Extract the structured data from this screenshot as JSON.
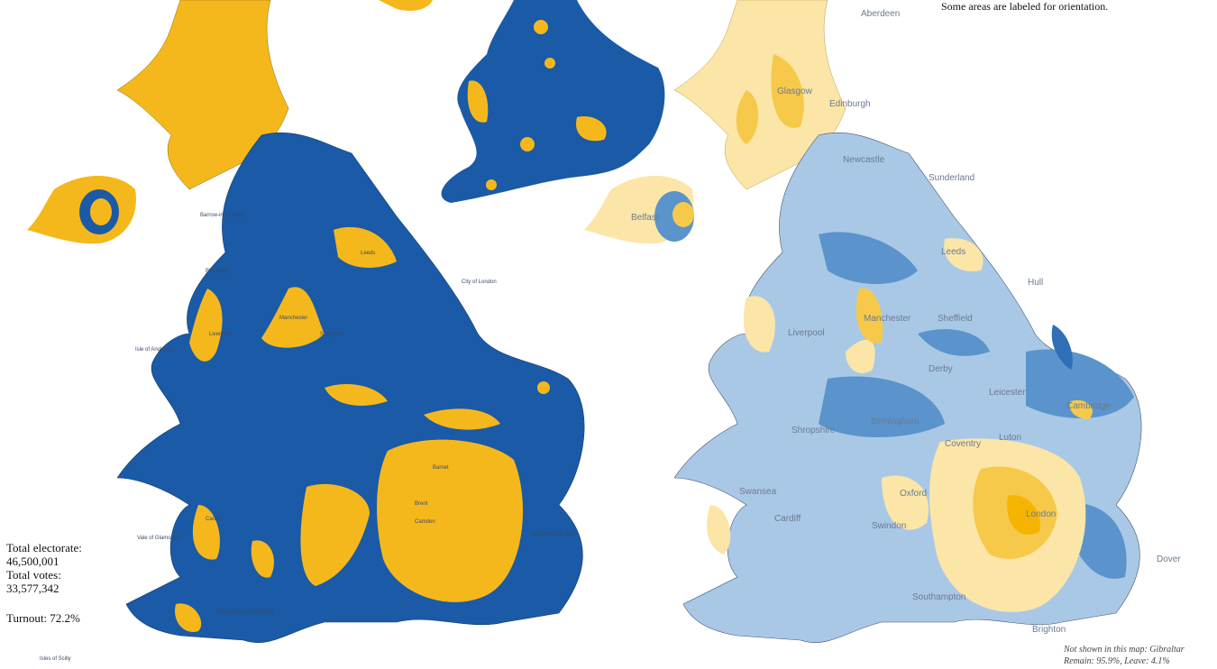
{
  "header": {
    "note": "Some areas are labeled for orientation."
  },
  "stats": {
    "electorate_label": "Total electorate:",
    "electorate": "46,500,001",
    "votes_label": "Total votes:",
    "votes": "33,577,342",
    "turnout": "Turnout: 72.2%"
  },
  "footnote": {
    "line1": "Not shown in this map: Gibraltar",
    "line2": "Remain: 95.9%, Leave: 4.1%"
  },
  "left_map": {
    "labels": [
      "Barrow-in-Furness",
      "Blackpool",
      "Leeds",
      "Manchester",
      "Stockport",
      "Liverpool",
      "City of London",
      "Cardiff",
      "Vale of Glamorgan",
      "Weymouth and Portland",
      "Isles of Scilly",
      "Southend-on-Sea",
      "Isle of Anglesey",
      "Barnet",
      "Camden",
      "Brent"
    ]
  },
  "right_map": {
    "labels": [
      "Aberdeen",
      "Glasgow",
      "Edinburgh",
      "Newcastle",
      "Sunderland",
      "Leeds",
      "Manchester",
      "Sheffield",
      "Liverpool",
      "Derby",
      "Leicester",
      "Birmingham",
      "Coventry",
      "Cambridge",
      "Luton",
      "Oxford",
      "Swindon",
      "London",
      "Cardiff",
      "Swansea",
      "Southampton",
      "Brighton",
      "Belfast",
      "Shropshire",
      "Hull",
      "Dover"
    ]
  }
}
